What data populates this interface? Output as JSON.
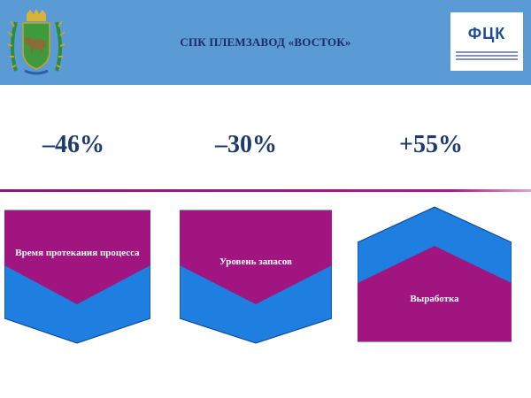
{
  "header": {
    "title": "СПК ПЛЕМЗАВОД «ВОСТОК»",
    "logo_text": "ФЦК",
    "emblem": "coat-of-arms-icon"
  },
  "stats": [
    {
      "value": "–46%"
    },
    {
      "value": "–30%"
    },
    {
      "value": "+55%"
    }
  ],
  "shapes": [
    {
      "label": "Время протекания процесса",
      "direction": "down"
    },
    {
      "label": "Уровень запасов",
      "direction": "down"
    },
    {
      "label": "Выработка",
      "direction": "up"
    }
  ],
  "colors": {
    "header": "#5b9bd5",
    "magenta": "#a0157f",
    "blue": "#1e7fe0",
    "stat_text": "#1f3a6e",
    "title_text": "#1f2a6b"
  }
}
